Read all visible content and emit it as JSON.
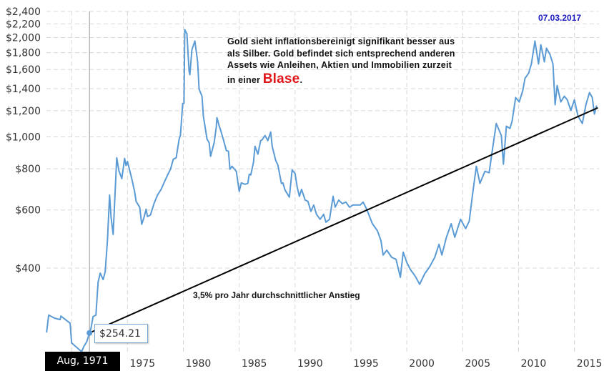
{
  "annotations": {
    "date": "07.03.2017",
    "note_lines": [
      "Gold sieht inflationsbereinigt signifikant besser aus",
      "als Silber. Gold befindet sich entsprechend anderen",
      "Assets wie Anleihen, Aktien und Immobilien zurzeit"
    ],
    "note_last_prefix": "in einer ",
    "note_highlight": "Blase",
    "note_last_suffix": ".",
    "trend_label": "3,5% pro Jahr durchschnittlicher Anstieg"
  },
  "tooltip": {
    "value": "$254.21",
    "x_label": "Aug, 1971"
  },
  "colors": {
    "series": "#5b9bd5",
    "trend": "#000000",
    "highlight": "#e0161a",
    "date": "#1a1abf",
    "grid": "#d8d8d8"
  },
  "chart_data": {
    "type": "line",
    "title": "",
    "xlabel": "",
    "ylabel": "",
    "y_scale": "log",
    "ylim": [
      223,
      2400
    ],
    "xlim": [
      1967.75,
      2017.2
    ],
    "grid": true,
    "y_ticks": [
      {
        "value": 400,
        "label": "$400"
      },
      {
        "value": 600,
        "label": "$600"
      },
      {
        "value": 800,
        "label": "$800"
      },
      {
        "value": 1000,
        "label": "$1,000"
      },
      {
        "value": 1200,
        "label": "$1,200"
      },
      {
        "value": 1400,
        "label": "$1,400"
      },
      {
        "value": 1600,
        "label": "$1,600"
      },
      {
        "value": 1800,
        "label": "$1,800"
      },
      {
        "value": 2000,
        "label": "$2,000"
      },
      {
        "value": 2200,
        "label": "$2,200"
      },
      {
        "value": 2400,
        "label": "$2,400"
      }
    ],
    "x_gridlines": [
      1970,
      1975,
      1980,
      1985,
      1990,
      1995,
      2000,
      2005,
      2010,
      2015
    ],
    "x_ticks": [
      {
        "value": 1975,
        "label": "1975"
      },
      {
        "value": 1980,
        "label": "1980"
      },
      {
        "value": 1985,
        "label": "1985"
      },
      {
        "value": 1990,
        "label": "1990"
      },
      {
        "value": 1995,
        "label": "1995"
      },
      {
        "value": 2000,
        "label": "2000"
      },
      {
        "value": 2005,
        "label": "2005"
      },
      {
        "value": 2010,
        "label": "2010"
      },
      {
        "value": 2015,
        "label": "2015"
      }
    ],
    "highlight_point": {
      "x": 1971.6,
      "y": 254.21
    },
    "trend_line": {
      "start": [
        1971.6,
        254.21
      ],
      "end": [
        2017.1,
        1225
      ]
    },
    "series": [
      {
        "x": [
          1967.76,
          1967.95,
          1968.46,
          1968.97,
          1969.04,
          1969.87,
          1970.0,
          1970.77,
          1970.9,
          1971.09,
          1971.35,
          1971.6,
          1971.73,
          1971.92,
          1972.18,
          1972.37,
          1972.56,
          1972.82,
          1973.01,
          1973.21,
          1973.4,
          1973.53,
          1973.72,
          1974.04,
          1974.23,
          1974.49,
          1974.62,
          1974.74,
          1974.87,
          1975.0,
          1975.38,
          1975.64,
          1975.77,
          1976.09,
          1976.28,
          1976.47,
          1976.67,
          1976.79,
          1977.05,
          1977.37,
          1977.69,
          1978.01,
          1978.33,
          1978.59,
          1978.85,
          1979.1,
          1979.36,
          1979.62,
          1979.74,
          1979.94,
          1980.06,
          1980.13,
          1980.32,
          1980.51,
          1980.58,
          1980.77,
          1981.03,
          1981.28,
          1981.41,
          1981.67,
          1981.79,
          1981.92,
          1982.12,
          1982.31,
          1982.44,
          1982.76,
          1982.95,
          1983.01,
          1983.21,
          1983.33,
          1983.59,
          1983.85,
          1984.04,
          1984.17,
          1984.36,
          1984.74,
          1985.0,
          1985.19,
          1985.51,
          1985.77,
          1985.9,
          1986.03,
          1986.28,
          1986.41,
          1986.67,
          1986.92,
          1987.05,
          1987.31,
          1987.56,
          1987.82,
          1987.95,
          1988.27,
          1988.46,
          1988.78,
          1988.91,
          1989.1,
          1989.49,
          1989.74,
          1990.0,
          1990.19,
          1990.38,
          1990.58,
          1990.9,
          1991.15,
          1991.41,
          1991.67,
          1991.92,
          1992.24,
          1992.56,
          1992.76,
          1993.08,
          1993.4,
          1993.59,
          1993.91,
          1994.23,
          1994.55,
          1994.87,
          1995.19,
          1995.83,
          1996.09,
          1996.41,
          1996.92,
          1997.37,
          1997.69,
          1997.88,
          1998.21,
          1998.65,
          1999.04,
          1999.42,
          1999.68,
          2000.0,
          2000.32,
          2000.77,
          2001.15,
          2001.6,
          2002.05,
          2002.5,
          2002.88,
          2003.14,
          2003.53,
          2003.97,
          2004.29,
          2004.81,
          2005.26,
          2005.58,
          2005.9,
          2006.22,
          2006.54,
          2006.99,
          2007.37,
          2007.69,
          2008.01,
          2008.46,
          2008.65,
          2008.91,
          2009.23,
          2009.42,
          2009.74,
          2010.06,
          2010.38,
          2010.58,
          2010.9,
          2011.15,
          2011.47,
          2011.79,
          2011.99,
          2012.31,
          2012.5,
          2012.82,
          2013.08,
          2013.27,
          2013.46,
          2013.78,
          2014.1,
          2014.36,
          2014.68,
          2015.0,
          2015.32,
          2015.71,
          2016.03,
          2016.35,
          2016.6,
          2016.79,
          2016.99
        ],
        "values": [
          255,
          288,
          282,
          279,
          286,
          272,
          237,
          225,
          223,
          231,
          239,
          254.21,
          262,
          285,
          288,
          362,
          386,
          369,
          390,
          488,
          666,
          570,
          506,
          864,
          790,
          747,
          801,
          860,
          818,
          842,
          747,
          683,
          637,
          612,
          543,
          568,
          603,
          573,
          579,
          627,
          666,
          693,
          733,
          766,
          797,
          855,
          864,
          984,
          1009,
          1263,
          1263,
          2114,
          2052,
          1582,
          1543,
          1838,
          1952,
          1688,
          1396,
          1328,
          1155,
          1087,
          984,
          960,
          873,
          960,
          1071,
          1143,
          1077,
          1050,
          979,
          908,
          904,
          797,
          814,
          786,
          683,
          725,
          718,
          722,
          770,
          766,
          838,
          936,
          886,
          974,
          979,
          1009,
          974,
          1034,
          936,
          847,
          822,
          722,
          725,
          690,
          656,
          794,
          774,
          704,
          660,
          693,
          643,
          637,
          594,
          621,
          582,
          562,
          582,
          551,
          562,
          660,
          612,
          643,
          627,
          634,
          612,
          621,
          621,
          634,
          603,
          545,
          519,
          484,
          438,
          453,
          431,
          425,
          375,
          447,
          416,
          396,
          377,
          357,
          384,
          404,
          431,
          472,
          438,
          494,
          545,
          496,
          562,
          527,
          554,
          676,
          814,
          722,
          786,
          778,
          927,
          1098,
          1009,
          826,
          1077,
          1060,
          1115,
          1315,
          1276,
          1382,
          1505,
          1558,
          1663,
          1952,
          1663,
          1903,
          1688,
          1857,
          1775,
          1663,
          1251,
          1431,
          1276,
          1328,
          1295,
          1202,
          1295,
          1155,
          1098,
          1251,
          1362,
          1315,
          1172,
          1245
        ]
      }
    ]
  }
}
